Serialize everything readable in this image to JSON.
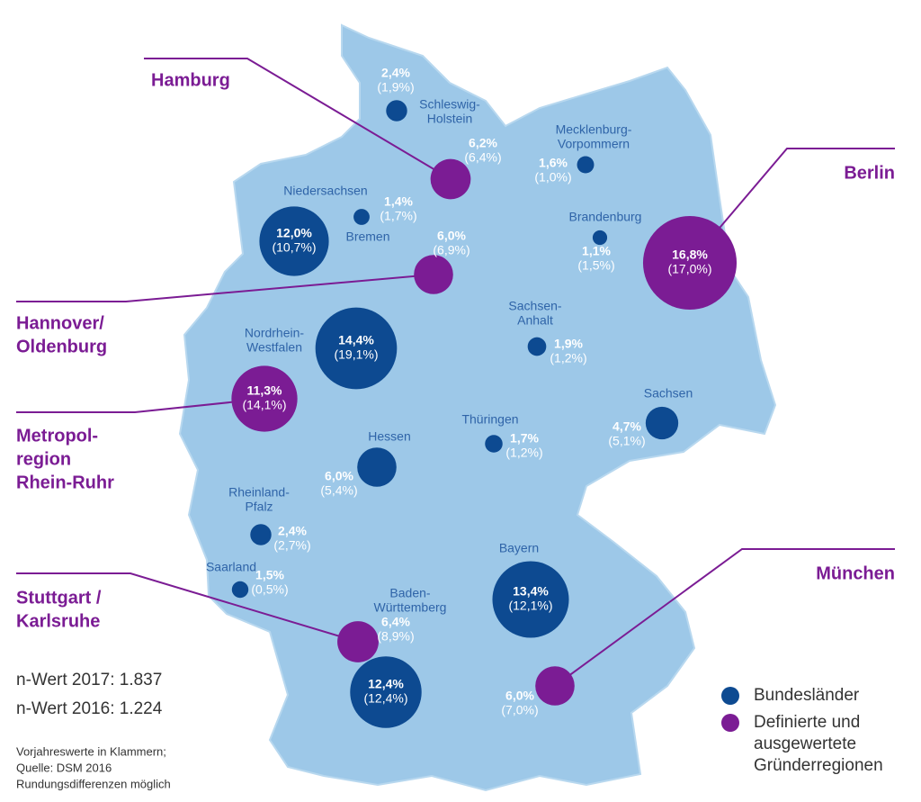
{
  "states": [
    {
      "name": [
        "Schleswig-",
        "Holstein"
      ],
      "value": 2.4,
      "label": "2,4%",
      "prev_label": "(1,9%)"
    },
    {
      "name": [
        "Mecklenburg-",
        "Vorpommern"
      ],
      "value": 1.6,
      "label": "1,6%",
      "prev_label": "(1,0%)"
    },
    {
      "name": [
        "Niedersachsen"
      ],
      "value": 12.0,
      "label": "12,0%",
      "prev_label": "(10,7%)"
    },
    {
      "name": [
        "Bremen"
      ],
      "value": 1.4,
      "label": "1,4%",
      "prev_label": "(1,7%)"
    },
    {
      "name": [
        "Brandenburg"
      ],
      "value": 1.1,
      "label": "1,1%",
      "prev_label": "(1,5%)"
    },
    {
      "name": [
        "Nordrhein-",
        "Westfalen"
      ],
      "value": 14.4,
      "label": "14,4%",
      "prev_label": "(19,1%)"
    },
    {
      "name": [
        "Sachsen-",
        "Anhalt"
      ],
      "value": 1.9,
      "label": "1,9%",
      "prev_label": "(1,2%)"
    },
    {
      "name": [
        "Sachsen"
      ],
      "value": 4.7,
      "label": "4,7%",
      "prev_label": "(5,1%)"
    },
    {
      "name": [
        "Thüringen"
      ],
      "value": 1.7,
      "label": "1,7%",
      "prev_label": "(1,2%)"
    },
    {
      "name": [
        "Hessen"
      ],
      "value": 6.0,
      "label": "6,0%",
      "prev_label": "(5,4%)"
    },
    {
      "name": [
        "Rheinland-",
        "Pfalz"
      ],
      "value": 2.4,
      "label": "2,4%",
      "prev_label": "(2,7%)"
    },
    {
      "name": [
        "Saarland"
      ],
      "value": 1.5,
      "label": "1,5%",
      "prev_label": "(0,5%)"
    },
    {
      "name": [
        "Baden-",
        "Württemberg"
      ],
      "value": 12.4,
      "label": "12,4%",
      "prev_label": "(12,4%)"
    },
    {
      "name": [
        "Bayern"
      ],
      "value": 13.4,
      "label": "13,4%",
      "prev_label": "(12,1%)"
    }
  ],
  "regions": [
    {
      "name": [
        "Hamburg"
      ],
      "value": 6.2,
      "label": "6,2%",
      "prev_label": "(6,4%)"
    },
    {
      "name": [
        "Berlin"
      ],
      "value": 16.8,
      "label": "16,8%",
      "prev_label": "(17,0%)"
    },
    {
      "name": [
        "Hannover/",
        "Oldenburg"
      ],
      "value": 6.0,
      "label": "6,0%",
      "prev_label": "(6,9%)"
    },
    {
      "name": [
        "Metropol-",
        "region",
        "Rhein-Ruhr"
      ],
      "value": 11.3,
      "label": "11,3%",
      "prev_label": "(14,1%)"
    },
    {
      "name": [
        "Stuttgart /",
        "Karlsruhe"
      ],
      "value": 6.4,
      "label": "6,4%",
      "prev_label": "(8,9%)"
    },
    {
      "name": [
        "München"
      ],
      "value": 6.0,
      "label": "6,0%",
      "prev_label": "(7,0%)"
    }
  ],
  "stats": [
    "n-Wert 2017: 1.837",
    "n-Wert 2016: 1.224"
  ],
  "notes": [
    "Vorjahreswerte in Klammern;",
    "Quelle: DSM 2016",
    "Rundungsdifferenzen möglich"
  ],
  "legend": [
    {
      "lines": [
        "Bundesländer"
      ],
      "color": "#0d4a91"
    },
    {
      "lines": [
        "Definierte und",
        "ausgewertete",
        "Gründerregionen"
      ],
      "color": "#7b1c94"
    }
  ]
}
